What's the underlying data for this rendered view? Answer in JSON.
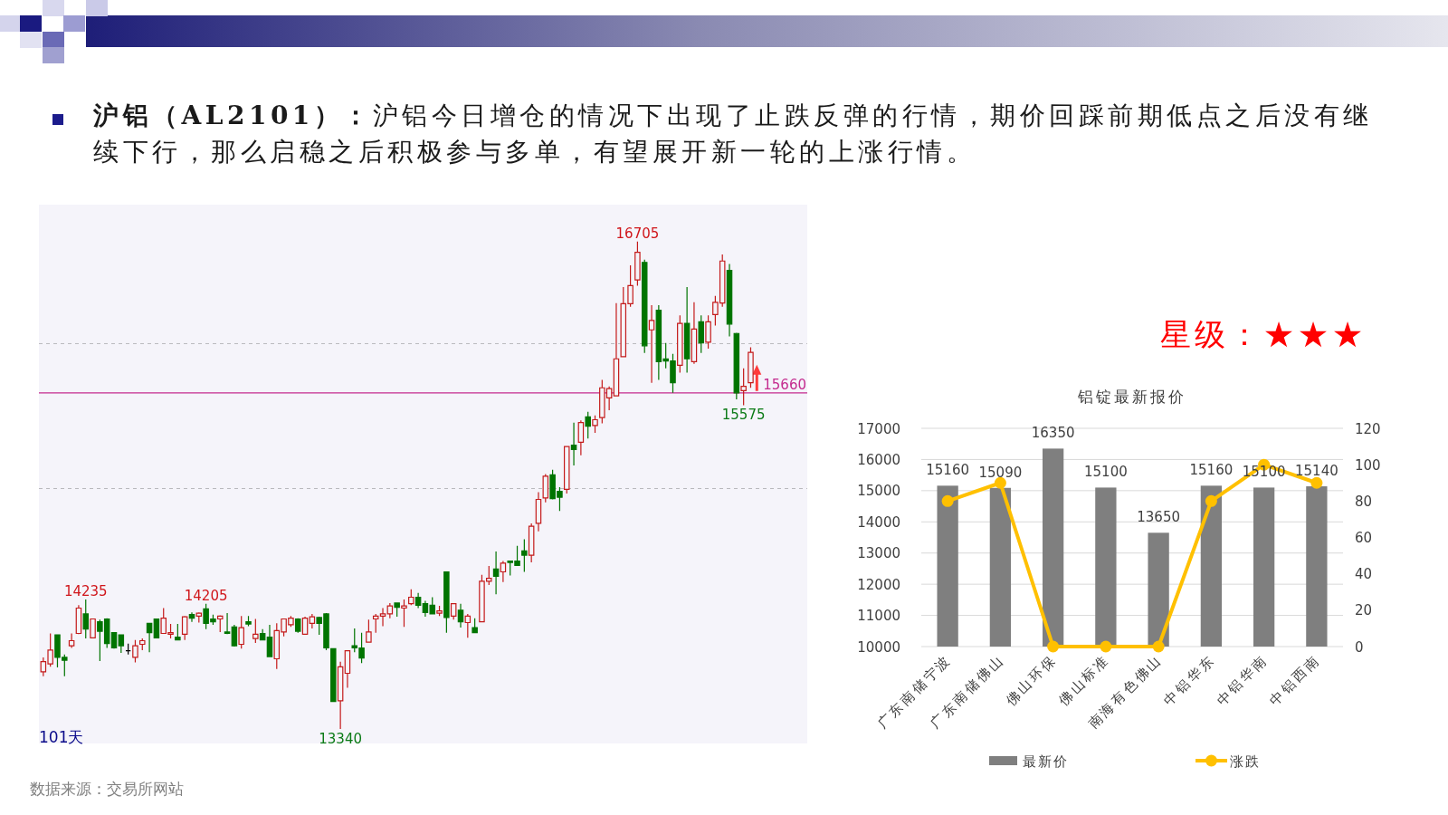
{
  "chart_data": [
    {
      "type": "other",
      "title": "**沪铝（AL2101）：**沪铝今日增仓的情况下出现了止跌反弹的行情，期价回踩前期低点之后没有继续下行，那么启稳之后积极参与多单，有望展开新一轮的上涨行情。"
    },
    {
      "type": "candlestick",
      "categories": [
        null,
        null,
        null,
        null,
        null,
        null,
        null,
        null,
        null,
        null,
        null,
        null,
        null,
        null,
        null,
        null,
        null,
        null,
        null,
        null,
        null,
        null,
        null,
        null,
        null,
        null,
        null,
        null,
        null,
        null,
        null,
        null,
        null,
        null,
        null,
        null,
        null,
        null,
        null,
        null,
        null,
        null,
        null,
        null,
        null,
        null,
        null,
        null,
        null,
        null,
        null,
        null,
        null,
        null,
        null,
        null,
        null,
        null,
        null,
        null,
        null,
        null,
        null,
        null,
        null,
        null,
        null,
        null,
        null,
        null,
        null,
        null,
        null,
        null,
        null,
        null,
        null,
        null,
        null,
        null,
        null,
        null,
        null,
        null,
        null,
        null,
        null,
        null,
        null,
        null,
        null,
        null,
        null,
        null,
        null,
        null,
        null,
        null,
        null,
        null,
        null
      ],
      "ohlc": [
        [
          13735,
          13835,
          13705,
          13805
        ],
        [
          13790,
          14000,
          13770,
          13885
        ],
        [
          13990,
          13990,
          13765,
          13835
        ],
        [
          13835,
          13855,
          13705,
          13815
        ],
        [
          13915,
          14000,
          13900,
          13950
        ],
        [
          14000,
          14195,
          13995,
          14175
        ],
        [
          14135,
          14235,
          13965,
          14030
        ],
        [
          13970,
          14100,
          13970,
          14100
        ],
        [
          14080,
          14095,
          13810,
          14015
        ],
        [
          14100,
          14105,
          13900,
          13930
        ],
        [
          14005,
          14005,
          13895,
          13900
        ],
        [
          13990,
          13990,
          13865,
          13915
        ],
        [
          13880,
          13930,
          13855,
          13880
        ],
        [
          13835,
          13955,
          13800,
          13915
        ],
        [
          13925,
          13965,
          13885,
          13950
        ],
        [
          14070,
          14070,
          13870,
          14005
        ],
        [
          14100,
          14100,
          13965,
          13970
        ],
        [
          14000,
          14175,
          14000,
          14105
        ],
        [
          13995,
          14065,
          13965,
          14005
        ],
        [
          13975,
          14065,
          13955,
          13955
        ],
        [
          13995,
          14120,
          13955,
          14115
        ],
        [
          14130,
          14145,
          14080,
          14105
        ],
        [
          14120,
          14145,
          14075,
          14140
        ],
        [
          14170,
          14205,
          14030,
          14070
        ],
        [
          14100,
          14130,
          14060,
          14080
        ],
        [
          14100,
          14125,
          14010,
          14120
        ],
        [
          14010,
          14140,
          13995,
          14000
        ],
        [
          14045,
          14060,
          13910,
          13915
        ],
        [
          13925,
          14120,
          13895,
          14040
        ],
        [
          14080,
          14120,
          14050,
          14065
        ],
        [
          13965,
          14100,
          13935,
          13995
        ],
        [
          14000,
          14030,
          13955,
          13955
        ],
        [
          13975,
          14060,
          13840,
          13840
        ],
        [
          13825,
          14070,
          13755,
          14020
        ],
        [
          14010,
          14100,
          13980,
          14100
        ],
        [
          14060,
          14120,
          14045,
          14105
        ],
        [
          14100,
          14105,
          14005,
          14015
        ],
        [
          13995,
          14115,
          13990,
          14105
        ],
        [
          14070,
          14135,
          14035,
          14115
        ],
        [
          14110,
          14115,
          13990,
          14070
        ],
        [
          14135,
          14140,
          13885,
          13900
        ],
        [
          13895,
          13895,
          13530,
          13530
        ],
        [
          13535,
          13805,
          13340,
          13770
        ],
        [
          13725,
          13885,
          13625,
          13880
        ],
        [
          13915,
          14035,
          13870,
          13900
        ],
        [
          13900,
          14005,
          13795,
          13830
        ],
        [
          13940,
          14095,
          13940,
          14010
        ],
        [
          14100,
          14135,
          14005,
          14120
        ],
        [
          14120,
          14175,
          14050,
          14135
        ],
        [
          14135,
          14210,
          14105,
          14190
        ],
        [
          14210,
          14210,
          14115,
          14180
        ],
        [
          14175,
          14235,
          14045,
          14190
        ],
        [
          14205,
          14305,
          14195,
          14250
        ],
        [
          14250,
          14280,
          14175,
          14195
        ],
        [
          14205,
          14225,
          14115,
          14145
        ],
        [
          14195,
          14250,
          14135,
          14135
        ],
        [
          14140,
          14190,
          14120,
          14155
        ],
        [
          14425,
          14425,
          14005,
          14110
        ],
        [
          14120,
          14205,
          14095,
          14205
        ],
        [
          14160,
          14205,
          14040,
          14080
        ],
        [
          14075,
          14135,
          13970,
          14120
        ],
        [
          14040,
          14105,
          14005,
          14005
        ],
        [
          14080,
          14405,
          14080,
          14360
        ],
        [
          14360,
          14465,
          14335,
          14380
        ],
        [
          14445,
          14565,
          14270,
          14395
        ],
        [
          14425,
          14500,
          14355,
          14485
        ],
        [
          14500,
          14500,
          14400,
          14490
        ],
        [
          14500,
          14605,
          14470,
          14470
        ],
        [
          14570,
          14650,
          14425,
          14540
        ],
        [
          14540,
          14760,
          14490,
          14740
        ],
        [
          14760,
          14975,
          14705,
          14925
        ],
        [
          14935,
          15100,
          14905,
          15085
        ],
        [
          15095,
          15130,
          14925,
          14930
        ],
        [
          14980,
          15010,
          14845,
          14940
        ],
        [
          14995,
          15290,
          14965,
          15290
        ],
        [
          15300,
          15455,
          15160,
          15270
        ],
        [
          15320,
          15470,
          15230,
          15455
        ],
        [
          15495,
          15530,
          15345,
          15430
        ],
        [
          15435,
          15505,
          15385,
          15475
        ],
        [
          15490,
          15750,
          15450,
          15695
        ],
        [
          15625,
          15705,
          15540,
          15690
        ],
        [
          15640,
          16280,
          15640,
          15895
        ],
        [
          15910,
          16390,
          15910,
          16275
        ],
        [
          16275,
          16540,
          16255,
          16400
        ],
        [
          16440,
          16705,
          16400,
          16630
        ],
        [
          16560,
          16580,
          15935,
          15985
        ],
        [
          16095,
          16265,
          15730,
          16160
        ],
        [
          16230,
          16265,
          15750,
          15875
        ],
        [
          15895,
          16005,
          15830,
          15880
        ],
        [
          15880,
          15930,
          15660,
          15730
        ],
        [
          15850,
          16195,
          15800,
          16140
        ],
        [
          16140,
          16390,
          15800,
          15895
        ],
        [
          15875,
          16285,
          15860,
          16100
        ],
        [
          16150,
          16195,
          15935,
          16005
        ],
        [
          16010,
          16195,
          15965,
          16150
        ],
        [
          16200,
          16330,
          16125,
          16285
        ],
        [
          16280,
          16615,
          16255,
          16570
        ],
        [
          16505,
          16550,
          16050,
          16135
        ],
        [
          16070,
          16075,
          15615,
          15660
        ],
        [
          15675,
          15830,
          15575,
          15705
        ],
        [
          15730,
          15975,
          15695,
          15940
        ]
      ],
      "colors": [
        "#c41a1a",
        "#c41a1a",
        "#007400",
        "#007400",
        "#c41a1a",
        "#c41a1a",
        "#007400",
        "#c41a1a",
        "#007400",
        "#007400",
        "#007400",
        "#007400",
        "#000000",
        "#c41a1a",
        "#c41a1a",
        "#007400",
        "#007400",
        "#c41a1a",
        "#c41a1a",
        "#007400",
        "#c41a1a",
        "#007400",
        "#c41a1a",
        "#007400",
        "#007400",
        "#c41a1a",
        "#007400",
        "#007400",
        "#c41a1a",
        "#007400",
        "#c41a1a",
        "#007400",
        "#007400",
        "#c41a1a",
        "#c41a1a",
        "#c41a1a",
        "#007400",
        "#c41a1a",
        "#c41a1a",
        "#007400",
        "#007400",
        "#007400",
        "#c41a1a",
        "#c41a1a",
        "#007400",
        "#007400",
        "#c41a1a",
        "#c41a1a",
        "#c41a1a",
        "#c41a1a",
        "#007400",
        "#c41a1a",
        "#c41a1a",
        "#007400",
        "#007400",
        "#007400",
        "#c41a1a",
        "#007400",
        "#c41a1a",
        "#007400",
        "#c41a1a",
        "#007400",
        "#c41a1a",
        "#c41a1a",
        "#007400",
        "#c41a1a",
        "#007400",
        "#007400",
        "#007400",
        "#c41a1a",
        "#c41a1a",
        "#c41a1a",
        "#007400",
        "#007400",
        "#c41a1a",
        "#007400",
        "#c41a1a",
        "#007400",
        "#c41a1a",
        "#c41a1a",
        "#c41a1a",
        "#c41a1a",
        "#c41a1a",
        "#c41a1a",
        "#c41a1a",
        "#007400",
        "#c41a1a",
        "#007400",
        "#007400",
        "#007400",
        "#c41a1a",
        "#007400",
        "#c41a1a",
        "#007400",
        "#c41a1a",
        "#c41a1a",
        "#c41a1a",
        "#007400",
        "#007400",
        "#c41a1a",
        "#c41a1a"
      ],
      "ref_lines": [
        {
          "axis": "y",
          "value": 16000,
          "line_style": "dashed",
          "color": "#b9b9bd"
        },
        {
          "axis": "y",
          "value": 15000,
          "line_style": "dashed",
          "color": "#b9b9bd"
        },
        {
          "axis": "y",
          "value": 15660,
          "label": "15660",
          "color": "#c42b8e"
        }
      ],
      "annotations": [
        {
          "text": "16705",
          "y": 16705
        },
        {
          "text": "14235",
          "y": 14235
        },
        {
          "text": "14205",
          "y": 14205
        },
        {
          "text": "13340",
          "y": 13340
        },
        {
          "text": "15575",
          "y": 15575
        },
        "101天",
        "数据来源：交易所网站"
      ]
    },
    {
      "type": "other",
      "title": "星级：★★★"
    },
    {
      "type": "bar",
      "title": "铝锭最新报价",
      "categories": [
        "广东南储宁波",
        "广东南储佛山",
        "佛山环保",
        "佛山标准",
        "南海有色佛山",
        "中铝华东",
        "中铝华南",
        "中铝西南"
      ],
      "series": [
        {
          "name": "最新价",
          "type": "bar",
          "color": "#7f7f7f",
          "values": [
            15160,
            15090,
            16350,
            15100,
            13650,
            15160,
            15100,
            15140
          ],
          "value_labels": [
            "15160",
            "15090",
            "16350",
            "15100",
            "13650",
            "15160",
            "15100",
            "15140"
          ]
        },
        {
          "name": "涨跌",
          "type": "line",
          "axis": "y2",
          "color": "#ffc000",
          "marker": "circle",
          "values": [
            80,
            90,
            0,
            0,
            0,
            80,
            100,
            90
          ]
        }
      ],
      "ylim": [
        10000,
        17000
      ],
      "yticks": [
        10000,
        11000,
        12000,
        13000,
        14000,
        15000,
        16000,
        17000
      ],
      "y2lim": [
        0,
        120
      ],
      "y2ticks": [
        0,
        20,
        40,
        60,
        80,
        100,
        120
      ],
      "grid": "y",
      "legend": "bottom"
    }
  ]
}
